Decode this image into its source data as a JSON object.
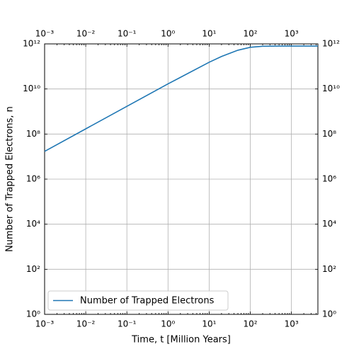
{
  "chart_data": {
    "type": "line",
    "xlabel": "Time, t [Million Years]",
    "ylabel": "Number of Trapped Electrons, n",
    "x": [
      0.001,
      0.01,
      0.1,
      1,
      10,
      20,
      50,
      100,
      200,
      500,
      1000,
      4400
    ],
    "series": [
      {
        "name": "Number of Trapped Electrons",
        "color": "#1f77b4",
        "values": [
          17000000,
          170000000,
          1700000000,
          16840000000,
          153000000000,
          277000000000,
          524000000000,
          705000000000,
          789000000000,
          800000000000,
          800000000000,
          800000000000
        ]
      }
    ],
    "xscale": "log",
    "yscale": "log",
    "xlim": [
      0.001,
      4400
    ],
    "ylim": [
      1,
      1000000000000
    ],
    "xticks": [
      {
        "value": 0.001,
        "label": "10⁻³"
      },
      {
        "value": 0.01,
        "label": "10⁻²"
      },
      {
        "value": 0.1,
        "label": "10⁻¹"
      },
      {
        "value": 1,
        "label": "10⁰"
      },
      {
        "value": 10,
        "label": "10¹"
      },
      {
        "value": 100,
        "label": "10²"
      },
      {
        "value": 1000,
        "label": "10³"
      }
    ],
    "yticks": [
      {
        "value": 1,
        "label": "10⁰"
      },
      {
        "value": 100,
        "label": "10²"
      },
      {
        "value": 10000,
        "label": "10⁴"
      },
      {
        "value": 1000000,
        "label": "10⁶"
      },
      {
        "value": 100000000,
        "label": "10⁸"
      },
      {
        "value": 10000000000,
        "label": "10¹⁰"
      },
      {
        "value": 1000000000000,
        "label": "10¹²"
      }
    ],
    "grid": true,
    "legend": "lower left"
  }
}
